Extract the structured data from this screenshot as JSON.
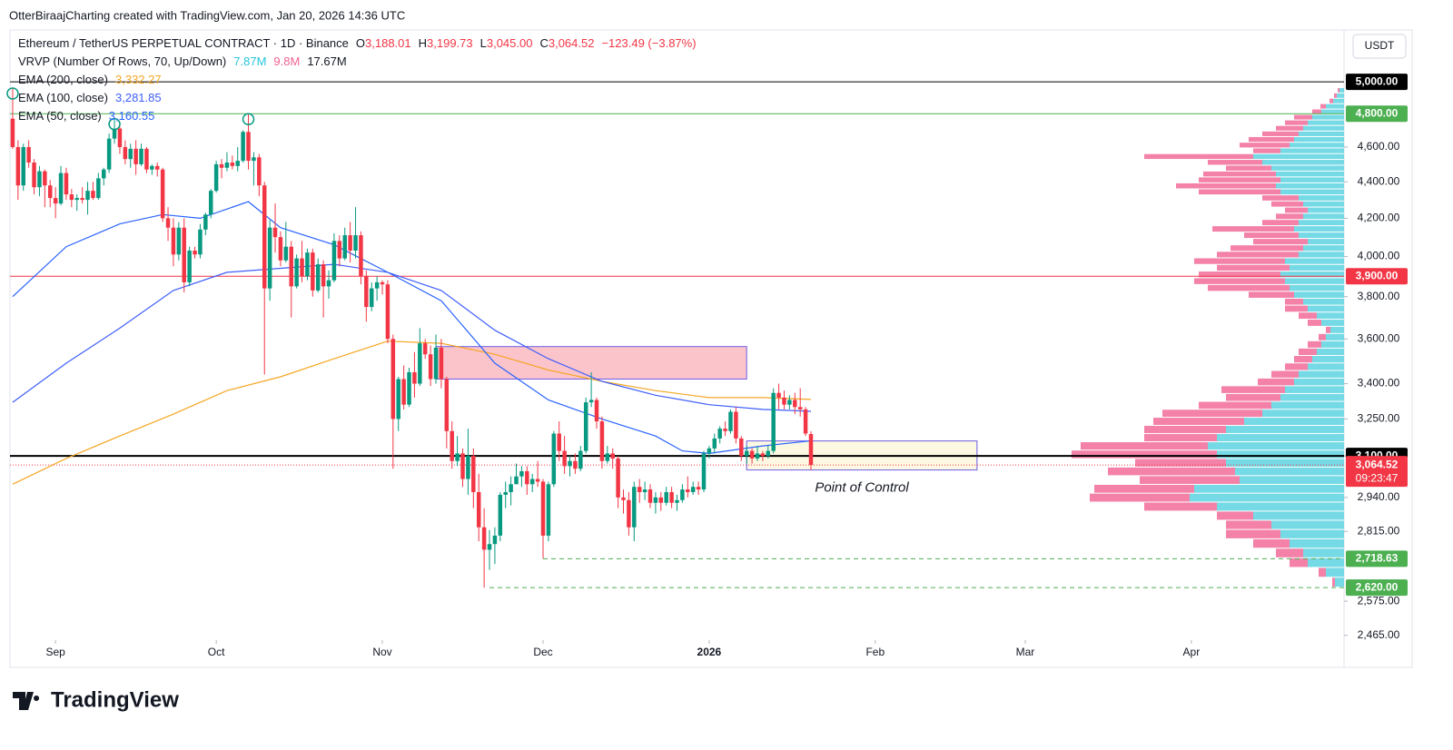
{
  "header": {
    "text": "OtterBiraajCharting created with TradingView.com, Jan 20, 2026 14:36 UTC"
  },
  "currency": "USDT",
  "brand": "TradingView",
  "chart_data": {
    "type": "candlestick",
    "title": "Ethereum / TetherUS PERPETUAL CONTRACT · 1D · Binance",
    "ohlc_legend": [
      {
        "label": "O",
        "value": "3,188.01"
      },
      {
        "label": "H",
        "value": "3,199.73"
      },
      {
        "label": "L",
        "value": "3,045.00"
      },
      {
        "label": "C",
        "value": "3,064.52"
      }
    ],
    "change": "−123.49 (−3.87%)",
    "candle_colors": {
      "up": "#089981",
      "down": "#f23645"
    },
    "candles": [
      [
        4770,
        4960,
        4590,
        4600
      ],
      [
        4600,
        4640,
        4300,
        4380
      ],
      [
        4380,
        4620,
        4350,
        4600
      ],
      [
        4600,
        4640,
        4480,
        4510
      ],
      [
        4510,
        4530,
        4330,
        4370
      ],
      [
        4370,
        4490,
        4320,
        4460
      ],
      [
        4460,
        4470,
        4260,
        4380
      ],
      [
        4380,
        4410,
        4260,
        4310
      ],
      [
        4310,
        4370,
        4200,
        4280
      ],
      [
        4280,
        4490,
        4270,
        4450
      ],
      [
        4450,
        4480,
        4300,
        4330
      ],
      [
        4330,
        4360,
        4260,
        4300
      ],
      [
        4300,
        4330,
        4240,
        4310
      ],
      [
        4310,
        4370,
        4280,
        4300
      ],
      [
        4300,
        4400,
        4220,
        4350
      ],
      [
        4350,
        4400,
        4300,
        4310
      ],
      [
        4310,
        4450,
        4300,
        4420
      ],
      [
        4420,
        4480,
        4380,
        4470
      ],
      [
        4470,
        4680,
        4450,
        4650
      ],
      [
        4650,
        4770,
        4620,
        4710
      ],
      [
        4710,
        4720,
        4560,
        4600
      ],
      [
        4600,
        4640,
        4500,
        4530
      ],
      [
        4530,
        4620,
        4480,
        4590
      ],
      [
        4590,
        4640,
        4440,
        4500
      ],
      [
        4500,
        4620,
        4490,
        4590
      ],
      [
        4590,
        4600,
        4450,
        4470
      ],
      [
        4470,
        4500,
        4440,
        4490
      ],
      [
        4490,
        4510,
        4430,
        4470
      ],
      [
        4470,
        4480,
        4180,
        4200
      ],
      [
        4200,
        4260,
        4080,
        4150
      ],
      [
        4150,
        4200,
        3950,
        4010
      ],
      [
        4010,
        4180,
        3980,
        4150
      ],
      [
        4150,
        4200,
        3820,
        3870
      ],
      [
        3870,
        4050,
        3850,
        4030
      ],
      [
        4030,
        4050,
        3990,
        4010
      ],
      [
        4010,
        4170,
        3990,
        4140
      ],
      [
        4140,
        4230,
        4110,
        4220
      ],
      [
        4220,
        4360,
        4200,
        4350
      ],
      [
        4350,
        4520,
        4340,
        4500
      ],
      [
        4500,
        4530,
        4420,
        4480
      ],
      [
        4480,
        4570,
        4460,
        4510
      ],
      [
        4510,
        4550,
        4470,
        4490
      ],
      [
        4490,
        4600,
        4460,
        4520
      ],
      [
        4520,
        4700,
        4510,
        4690
      ],
      [
        4690,
        4800,
        4470,
        4520
      ],
      [
        4520,
        4570,
        4380,
        4540
      ],
      [
        4540,
        4560,
        4320,
        4380
      ],
      [
        4380,
        4400,
        3440,
        3840
      ],
      [
        3840,
        4190,
        3780,
        4150
      ],
      [
        4150,
        4280,
        4020,
        4100
      ],
      [
        4100,
        4130,
        3950,
        3980
      ],
      [
        3980,
        4180,
        3970,
        4050
      ],
      [
        4050,
        4080,
        3700,
        3850
      ],
      [
        3850,
        4010,
        3840,
        3990
      ],
      [
        3990,
        4080,
        3870,
        3900
      ],
      [
        3900,
        4040,
        3880,
        4020
      ],
      [
        4020,
        4040,
        3800,
        3830
      ],
      [
        3830,
        3990,
        3820,
        3960
      ],
      [
        3960,
        3980,
        3700,
        3850
      ],
      [
        3850,
        3930,
        3790,
        3880
      ],
      [
        3880,
        4120,
        3870,
        4080
      ],
      [
        4080,
        4110,
        3950,
        3990
      ],
      [
        3990,
        4150,
        3980,
        4110
      ],
      [
        4110,
        4180,
        3970,
        4030
      ],
      [
        4030,
        4260,
        3990,
        4110
      ],
      [
        4110,
        4130,
        3860,
        3900
      ],
      [
        3900,
        3930,
        3680,
        3750
      ],
      [
        3750,
        3870,
        3730,
        3840
      ],
      [
        3840,
        3900,
        3780,
        3870
      ],
      [
        3870,
        3880,
        3810,
        3860
      ],
      [
        3860,
        3880,
        3580,
        3600
      ],
      [
        3600,
        3620,
        3050,
        3250
      ],
      [
        3250,
        3430,
        3200,
        3420
      ],
      [
        3420,
        3480,
        3290,
        3310
      ],
      [
        3310,
        3470,
        3300,
        3450
      ],
      [
        3450,
        3540,
        3340,
        3400
      ],
      [
        3400,
        3650,
        3390,
        3580
      ],
      [
        3580,
        3600,
        3510,
        3530
      ],
      [
        3530,
        3570,
        3390,
        3420
      ],
      [
        3420,
        3620,
        3400,
        3560
      ],
      [
        3560,
        3600,
        3380,
        3420
      ],
      [
        3420,
        3430,
        3130,
        3200
      ],
      [
        3200,
        3240,
        3050,
        3080
      ],
      [
        3080,
        3180,
        3060,
        3110
      ],
      [
        3110,
        3130,
        2980,
        3010
      ],
      [
        3010,
        3210,
        2950,
        3100
      ],
      [
        3100,
        3130,
        2900,
        2960
      ],
      [
        2960,
        3030,
        2780,
        2830
      ],
      [
        2830,
        2900,
        2620,
        2750
      ],
      [
        2750,
        2820,
        2680,
        2770
      ],
      [
        2770,
        2830,
        2700,
        2800
      ],
      [
        2800,
        2960,
        2780,
        2950
      ],
      [
        2950,
        3000,
        2900,
        2960
      ],
      [
        2960,
        3020,
        2910,
        2990
      ],
      [
        2990,
        3070,
        2990,
        3020
      ],
      [
        3020,
        3060,
        2980,
        3040
      ],
      [
        3040,
        3060,
        2950,
        2990
      ],
      [
        2990,
        3030,
        2960,
        3010
      ],
      [
        3010,
        3080,
        2980,
        3000
      ],
      [
        3000,
        3010,
        2718.63,
        2800
      ],
      [
        2800,
        3000,
        2780,
        2990
      ],
      [
        2990,
        3200,
        2980,
        3190
      ],
      [
        3190,
        3240,
        3080,
        3120
      ],
      [
        3120,
        3180,
        3030,
        3060
      ],
      [
        3060,
        3100,
        3020,
        3080
      ],
      [
        3080,
        3110,
        3030,
        3050
      ],
      [
        3050,
        3140,
        3040,
        3120
      ],
      [
        3120,
        3340,
        3110,
        3320
      ],
      [
        3320,
        3450,
        3300,
        3330
      ],
      [
        3330,
        3340,
        3210,
        3240
      ],
      [
        3240,
        3260,
        3050,
        3080
      ],
      [
        3080,
        3140,
        3070,
        3110
      ],
      [
        3110,
        3130,
        3050,
        3090
      ],
      [
        3090,
        3100,
        2900,
        2940
      ],
      [
        2940,
        2970,
        2880,
        2930
      ],
      [
        2930,
        2960,
        2800,
        2830
      ],
      [
        2830,
        3000,
        2780,
        2980
      ],
      [
        2980,
        3010,
        2920,
        2960
      ],
      [
        2960,
        3000,
        2930,
        2970
      ],
      [
        2970,
        2990,
        2900,
        2920
      ],
      [
        2920,
        2960,
        2880,
        2940
      ],
      [
        2940,
        2960,
        2890,
        2920
      ],
      [
        2920,
        2980,
        2910,
        2960
      ],
      [
        2960,
        2980,
        2900,
        2920
      ],
      [
        2920,
        2950,
        2890,
        2930
      ],
      [
        2930,
        2990,
        2920,
        2970
      ],
      [
        2970,
        3020,
        2940,
        2960
      ],
      [
        2960,
        3000,
        2950,
        2980
      ],
      [
        2980,
        3000,
        2950,
        2970
      ],
      [
        2970,
        3120,
        2960,
        3110
      ],
      [
        3110,
        3140,
        3090,
        3130
      ],
      [
        3130,
        3190,
        3110,
        3170
      ],
      [
        3170,
        3220,
        3150,
        3210
      ],
      [
        3210,
        3240,
        3180,
        3200
      ],
      [
        3200,
        3290,
        3190,
        3280
      ],
      [
        3280,
        3300,
        3150,
        3170
      ],
      [
        3170,
        3180,
        3080,
        3100
      ],
      [
        3100,
        3140,
        3070,
        3120
      ],
      [
        3120,
        3130,
        3070,
        3090
      ],
      [
        3090,
        3140,
        3080,
        3110
      ],
      [
        3110,
        3120,
        3080,
        3100
      ],
      [
        3100,
        3140,
        3090,
        3120
      ],
      [
        3120,
        3380,
        3110,
        3360
      ],
      [
        3360,
        3400,
        3290,
        3340
      ],
      [
        3340,
        3370,
        3290,
        3310
      ],
      [
        3310,
        3350,
        3290,
        3330
      ],
      [
        3330,
        3360,
        3270,
        3300
      ],
      [
        3300,
        3380,
        3260,
        3290
      ],
      [
        3290,
        3300,
        3180,
        3190
      ],
      [
        3188.01,
        3199.73,
        3045.0,
        3064.52
      ]
    ],
    "xlim": [
      -0.5,
      248.5
    ],
    "xticks": [
      {
        "value": 8,
        "label": "Sep"
      },
      {
        "value": 38,
        "label": "Oct"
      },
      {
        "value": 69,
        "label": "Nov"
      },
      {
        "value": 99,
        "label": "Dec"
      },
      {
        "value": 130,
        "label": "2026"
      },
      {
        "value": 161,
        "label": "Feb"
      },
      {
        "value": 189,
        "label": "Mar"
      },
      {
        "value": 220,
        "label": "Apr"
      }
    ],
    "ylim": [
      2450,
      5330
    ],
    "log_scale": true,
    "yticks": [
      {
        "value": 4600,
        "label": "4,600.00"
      },
      {
        "value": 4400,
        "label": "4,400.00"
      },
      {
        "value": 4200,
        "label": "4,200.00"
      },
      {
        "value": 4000,
        "label": "4,000.00"
      },
      {
        "value": 3800,
        "label": "3,800.00"
      },
      {
        "value": 3600,
        "label": "3,600.00"
      },
      {
        "value": 3400,
        "label": "3,400.00"
      },
      {
        "value": 3250,
        "label": "3,250.00"
      },
      {
        "value": 3100,
        "label": "3,100.00"
      },
      {
        "value": 2940,
        "label": "2,940.00"
      },
      {
        "value": 2815,
        "label": "2,815.00"
      },
      {
        "value": 2575,
        "label": "2,575.00"
      },
      {
        "value": 2465,
        "label": "2,465.00"
      }
    ],
    "lines": [
      {
        "name": "EMA (200, close)",
        "value_label": "3,332.27",
        "color": "#f5a623",
        "x": [
          0,
          10,
          20,
          30,
          40,
          50,
          60,
          70,
          80,
          90,
          100,
          110,
          120,
          130,
          140,
          149
        ],
        "values": [
          2990,
          3090,
          3180,
          3270,
          3370,
          3430,
          3510,
          3590,
          3580,
          3530,
          3460,
          3410,
          3370,
          3340,
          3340,
          3332.27
        ]
      },
      {
        "name": "EMA (100, close)",
        "value_label": "3,281.85",
        "color": "#3f5efb",
        "x": [
          0,
          10,
          20,
          30,
          40,
          50,
          60,
          70,
          80,
          90,
          100,
          110,
          120,
          130,
          140,
          149
        ],
        "values": [
          3320,
          3490,
          3650,
          3830,
          3920,
          3940,
          3960,
          3920,
          3830,
          3640,
          3510,
          3410,
          3350,
          3310,
          3290,
          3281.85
        ]
      },
      {
        "name": "EMA (50, close)",
        "value_label": "3,160.55",
        "color": "#2962ff",
        "x": [
          0,
          10,
          20,
          28,
          35,
          44,
          50,
          60,
          70,
          80,
          90,
          100,
          110,
          120,
          125,
          130,
          140,
          149
        ],
        "values": [
          3800,
          4050,
          4170,
          4220,
          4200,
          4290,
          4150,
          4060,
          3920,
          3780,
          3490,
          3330,
          3250,
          3180,
          3120,
          3110,
          3140,
          3160.55
        ]
      }
    ],
    "levels": [
      {
        "value": 5000,
        "label": "5,000.00",
        "color": "#000000",
        "style": "solid"
      },
      {
        "value": 4800,
        "label": "4,800.00",
        "color": "#4caf50",
        "style": "solid"
      },
      {
        "value": 3900,
        "label": "3,900.00",
        "color": "#f23645",
        "style": "solid"
      },
      {
        "value": 3100,
        "label": "3,100.00",
        "color": "#000000",
        "style": "thick"
      },
      {
        "value": 2718.63,
        "label": "2,718.63",
        "color": "#4caf50",
        "style": "dashed",
        "from": 99
      },
      {
        "value": 2620,
        "label": "2,620.00",
        "color": "#4caf50",
        "style": "dashed",
        "from": 89
      }
    ],
    "last_price": {
      "value": 3064.52,
      "label": "3,064.52",
      "countdown": "09:23:47",
      "color": "#f23645"
    },
    "zones": [
      {
        "x": [
          79,
          137
        ],
        "y": [
          3420,
          3565
        ],
        "fill": "#fbc4cb",
        "stroke": "#6c5ce7"
      },
      {
        "x": [
          137,
          180
        ],
        "y": [
          3045,
          3160
        ],
        "fill": "#fdf8e1",
        "stroke": "#6c5ce7"
      }
    ],
    "annotation": "Point of Control",
    "circled": [
      0,
      19,
      44
    ],
    "volume_profile": {
      "name": "VRVP (Number Of Rows, 70, Up/Down)",
      "up_label": "7.87M",
      "down_label": "9.8M",
      "total_label": "17.67M",
      "price_range": [
        2620,
        4960
      ],
      "up_color": "#5dd3e0",
      "down_color": "#f06292",
      "up": [
        5,
        8,
        12,
        20,
        25,
        35,
        40,
        45,
        50,
        55,
        60,
        70,
        100,
        90,
        80,
        75,
        70,
        75,
        70,
        50,
        45,
        40,
        45,
        50,
        55,
        50,
        40,
        45,
        50,
        65,
        60,
        70,
        65,
        60,
        55,
        45,
        40,
        30,
        25,
        15,
        20,
        25,
        30,
        35,
        40,
        50,
        55,
        65,
        70,
        80,
        90,
        110,
        130,
        140,
        150,
        140,
        130,
        120,
        115,
        165,
        170,
        140,
        100,
        80,
        70,
        60,
        45,
        40,
        20,
        10
      ],
      "down": [
        2,
        3,
        4,
        6,
        10,
        20,
        25,
        30,
        40,
        50,
        55,
        30,
        120,
        60,
        50,
        80,
        90,
        110,
        90,
        40,
        35,
        25,
        30,
        40,
        90,
        60,
        60,
        80,
        90,
        100,
        80,
        90,
        100,
        90,
        50,
        20,
        25,
        20,
        15,
        5,
        8,
        15,
        20,
        20,
        25,
        30,
        40,
        70,
        60,
        80,
        110,
        100,
        90,
        80,
        140,
        160,
        100,
        140,
        110,
        110,
        110,
        80,
        40,
        50,
        60,
        40,
        30,
        20,
        8,
        3
      ]
    }
  }
}
